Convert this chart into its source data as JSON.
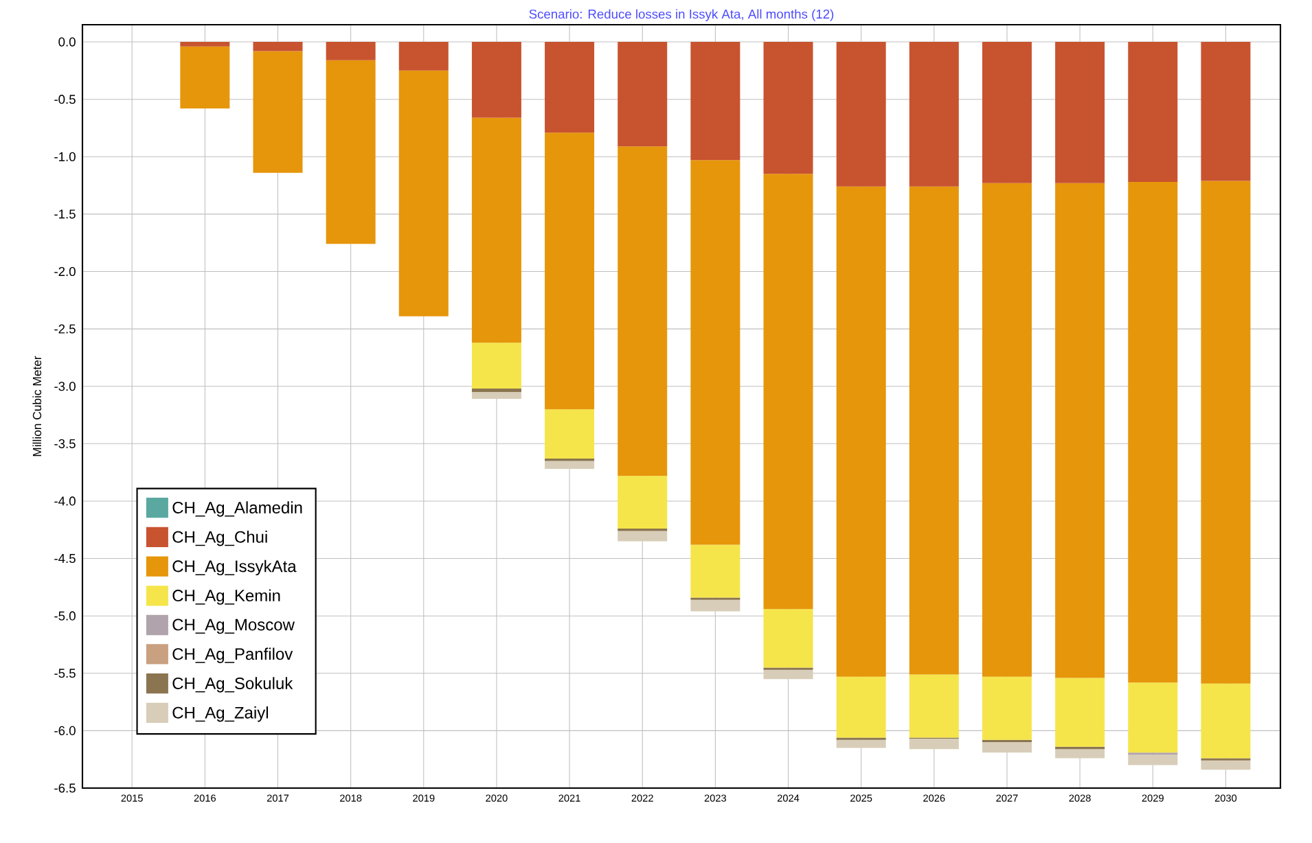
{
  "chart_data": {
    "type": "bar",
    "stacked": true,
    "title": "Scenario: Reduce losses in Issyk Ata, All months (12)",
    "ylabel": "Million Cubic Meter",
    "categories": [
      "2015",
      "2016",
      "2017",
      "2018",
      "2019",
      "2020",
      "2021",
      "2022",
      "2023",
      "2024",
      "2025",
      "2026",
      "2027",
      "2028",
      "2029",
      "2030"
    ],
    "series": [
      {
        "name": "CH_Ag_Alamedin",
        "color": "#5aa8a0",
        "values": [
          0,
          0,
          0,
          0,
          0,
          0,
          0,
          0,
          0,
          0,
          0,
          0,
          0,
          0,
          0,
          0
        ]
      },
      {
        "name": "CH_Ag_Chui",
        "color": "#c8532f",
        "values": [
          0,
          -0.04,
          -0.08,
          -0.16,
          -0.25,
          -0.66,
          -0.79,
          -0.91,
          -1.03,
          -1.15,
          -1.26,
          -1.26,
          -1.23,
          -1.23,
          -1.22,
          -1.21
        ]
      },
      {
        "name": "CH_Ag_IssykAta",
        "color": "#e6960a",
        "values": [
          0,
          -0.54,
          -1.06,
          -1.6,
          -2.14,
          -1.96,
          -2.41,
          -2.87,
          -3.35,
          -3.79,
          -4.27,
          -4.25,
          -4.3,
          -4.31,
          -4.36,
          -4.38
        ]
      },
      {
        "name": "CH_Ag_Kemin",
        "color": "#f5e54a",
        "values": [
          0,
          0,
          0,
          0,
          0,
          -0.4,
          -0.43,
          -0.46,
          -0.46,
          -0.51,
          -0.53,
          -0.55,
          -0.55,
          -0.6,
          -0.61,
          -0.65
        ]
      },
      {
        "name": "CH_Ag_Moscow",
        "color": "#b0a3ac",
        "values": [
          0,
          0,
          0,
          0,
          0,
          0,
          0,
          0,
          0,
          0,
          0,
          0,
          0,
          0,
          -0.02,
          0
        ]
      },
      {
        "name": "CH_Ag_Panfilov",
        "color": "#c9a080",
        "values": [
          0,
          0,
          0,
          0,
          0,
          0,
          0,
          0,
          0,
          0,
          0,
          0,
          0,
          0,
          0,
          0
        ]
      },
      {
        "name": "CH_Ag_Sokuluk",
        "color": "#8b7550",
        "values": [
          0,
          0,
          0,
          0,
          0,
          -0.03,
          -0.02,
          -0.02,
          -0.02,
          -0.02,
          -0.02,
          -0.01,
          -0.02,
          -0.02,
          0,
          -0.02
        ]
      },
      {
        "name": "CH_Ag_Zaiyl",
        "color": "#d8cdb8",
        "values": [
          0,
          0,
          0,
          0,
          0,
          -0.06,
          -0.07,
          -0.09,
          -0.1,
          -0.08,
          -0.07,
          -0.09,
          -0.09,
          -0.08,
          -0.09,
          -0.08
        ]
      }
    ],
    "ylim": [
      -6.5,
      0.15
    ],
    "yticks": [
      {
        "value": 0,
        "label": "0.0"
      },
      -0.5,
      {
        "value": -1,
        "label": "-1.0"
      },
      -1.5,
      {
        "value": -2,
        "label": "-2.0"
      },
      -2.5,
      {
        "value": -3,
        "label": "-3.0"
      },
      -3.5,
      {
        "value": -4,
        "label": "-4.0"
      },
      -4.5,
      {
        "value": -5,
        "label": "-5.0"
      },
      -5.5,
      {
        "value": -6,
        "label": "-6.0"
      },
      -6.5
    ],
    "grid": true,
    "legend": "bottom left"
  }
}
